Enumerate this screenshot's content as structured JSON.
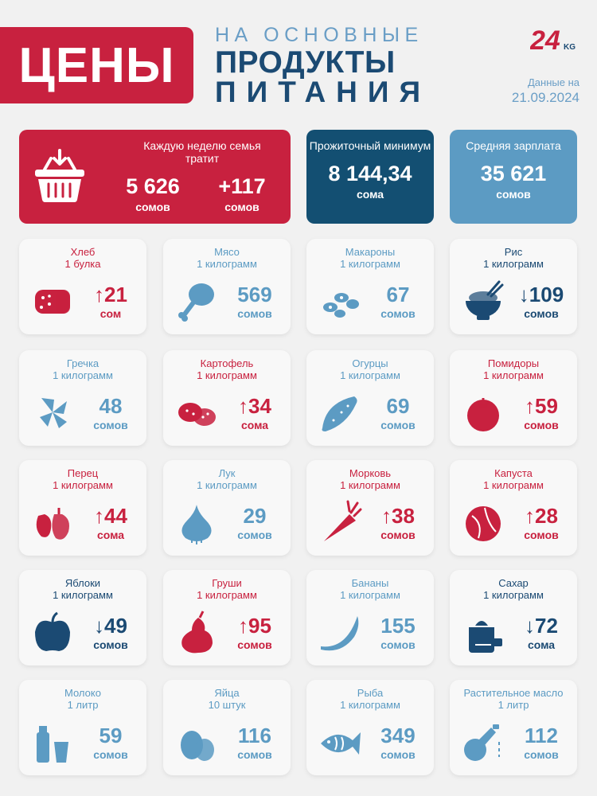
{
  "header": {
    "badge": "ЦЕНЫ",
    "line1": "НА ОСНОВНЫЕ",
    "line2": "ПРОДУКТЫ",
    "line3": "ПИТАНИЯ",
    "logo_text": "24",
    "logo_sub": "KG",
    "date_label": "Данные на",
    "date_value": "21.09.2024"
  },
  "colors": {
    "red": "#c8213f",
    "dark": "#1b4a73",
    "light": "#5c9bc3",
    "background": "#f1f1f1"
  },
  "summary": {
    "weekly": {
      "label": "Каждую неделю семья тратит",
      "value": "5 626",
      "unit": "сомов",
      "change": "+117",
      "change_unit": "сомов",
      "icon": "basket-icon"
    },
    "minimum": {
      "label": "Прожиточный минимум",
      "value": "8 144,34",
      "unit": "сома"
    },
    "salary": {
      "label": "Средняя зарплата",
      "value": "35 621",
      "unit": "сомов"
    }
  },
  "products": [
    {
      "name": "Хлеб",
      "unit": "1 булка",
      "value": "↑21",
      "currency": "сом",
      "trend": "up",
      "icon": "bread-icon"
    },
    {
      "name": "Мясо",
      "unit": "1 килограмм",
      "value": "569",
      "currency": "сомов",
      "trend": "none",
      "icon": "meat-icon"
    },
    {
      "name": "Макароны",
      "unit": "1 килограмм",
      "value": "67",
      "currency": "сомов",
      "trend": "none",
      "icon": "pasta-icon"
    },
    {
      "name": "Рис",
      "unit": "1 килограмм",
      "value": "↓109",
      "currency": "сомов",
      "trend": "down",
      "icon": "rice-bowl-icon"
    },
    {
      "name": "Гречка",
      "unit": "1 килограмм",
      "value": "48",
      "currency": "сомов",
      "trend": "none",
      "icon": "buckwheat-icon"
    },
    {
      "name": "Картофель",
      "unit": "1 килограмм",
      "value": "↑34",
      "currency": "сома",
      "trend": "up",
      "icon": "potato-icon"
    },
    {
      "name": "Огурцы",
      "unit": "1 килограмм",
      "value": "69",
      "currency": "сомов",
      "trend": "none",
      "icon": "cucumber-icon"
    },
    {
      "name": "Помидоры",
      "unit": "1 килограмм",
      "value": "↑59",
      "currency": "сомов",
      "trend": "up",
      "icon": "tomato-icon"
    },
    {
      "name": "Перец",
      "unit": "1 килограмм",
      "value": "↑44",
      "currency": "сома",
      "trend": "up",
      "icon": "pepper-icon"
    },
    {
      "name": "Лук",
      "unit": "1 килограмм",
      "value": "29",
      "currency": "сомов",
      "trend": "none",
      "icon": "onion-icon"
    },
    {
      "name": "Морковь",
      "unit": "1 килограмм",
      "value": "↑38",
      "currency": "сомов",
      "trend": "up",
      "icon": "carrot-icon"
    },
    {
      "name": "Капуста",
      "unit": "1 килограмм",
      "value": "↑28",
      "currency": "сомов",
      "trend": "up",
      "icon": "cabbage-icon"
    },
    {
      "name": "Яблоки",
      "unit": "1 килограмм",
      "value": "↓49",
      "currency": "сомов",
      "trend": "down",
      "icon": "apple-icon"
    },
    {
      "name": "Груши",
      "unit": "1 килограмм",
      "value": "↑95",
      "currency": "сомов",
      "trend": "up",
      "icon": "pear-icon"
    },
    {
      "name": "Бананы",
      "unit": "1 килограмм",
      "value": "155",
      "currency": "сомов",
      "trend": "none",
      "icon": "banana-icon"
    },
    {
      "name": "Сахар",
      "unit": "1 килограмм",
      "value": "↓72",
      "currency": "сома",
      "trend": "down",
      "icon": "sugar-sack-icon"
    },
    {
      "name": "Молоко",
      "unit": "1 литр",
      "value": "59",
      "currency": "сомов",
      "trend": "none",
      "icon": "milk-icon"
    },
    {
      "name": "Яйца",
      "unit": "10 штук",
      "value": "116",
      "currency": "сомов",
      "trend": "none",
      "icon": "eggs-icon"
    },
    {
      "name": "Рыба",
      "unit": "1 килограмм",
      "value": "349",
      "currency": "сомов",
      "trend": "none",
      "icon": "fish-icon"
    },
    {
      "name": "Растительное масло",
      "unit": "1 литр",
      "value": "112",
      "currency": "сомов",
      "trend": "none",
      "icon": "oil-bottle-icon"
    }
  ]
}
